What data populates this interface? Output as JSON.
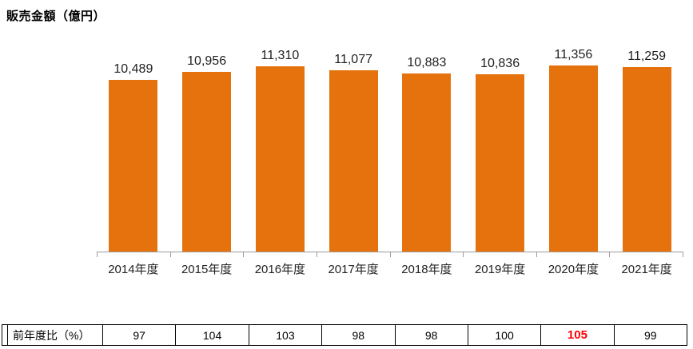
{
  "page": {
    "title": "販売金額（億円）"
  },
  "colors": {
    "bar": "#E6720D",
    "axis": "#9B9B9B",
    "text": "#1F1F1F",
    "table_border": "#000000",
    "highlight_text": "#FF0000"
  },
  "chart_data": {
    "type": "bar",
    "title": "販売金額（億円）",
    "categories": [
      "2014年度",
      "2015年度",
      "2016年度",
      "2017年度",
      "2018年度",
      "2019年度",
      "2020年度",
      "2021年度"
    ],
    "values": [
      10489,
      10956,
      11310,
      11077,
      10883,
      10836,
      11356,
      11259
    ],
    "value_labels": [
      "10,489",
      "10,956",
      "11,310",
      "11,077",
      "10,883",
      "10,836",
      "11,356",
      "11,259"
    ],
    "xlabel": "",
    "ylabel": "販売金額（億円）",
    "ylim": [
      0,
      11500
    ],
    "grid": false,
    "legend": "none",
    "data_labels": "above-bars",
    "bar_color": "#E6720D"
  },
  "table": {
    "header": "前年度比（%）",
    "values": [
      "97",
      "104",
      "103",
      "98",
      "98",
      "100",
      "105",
      "99"
    ],
    "highlight_index": 6
  }
}
